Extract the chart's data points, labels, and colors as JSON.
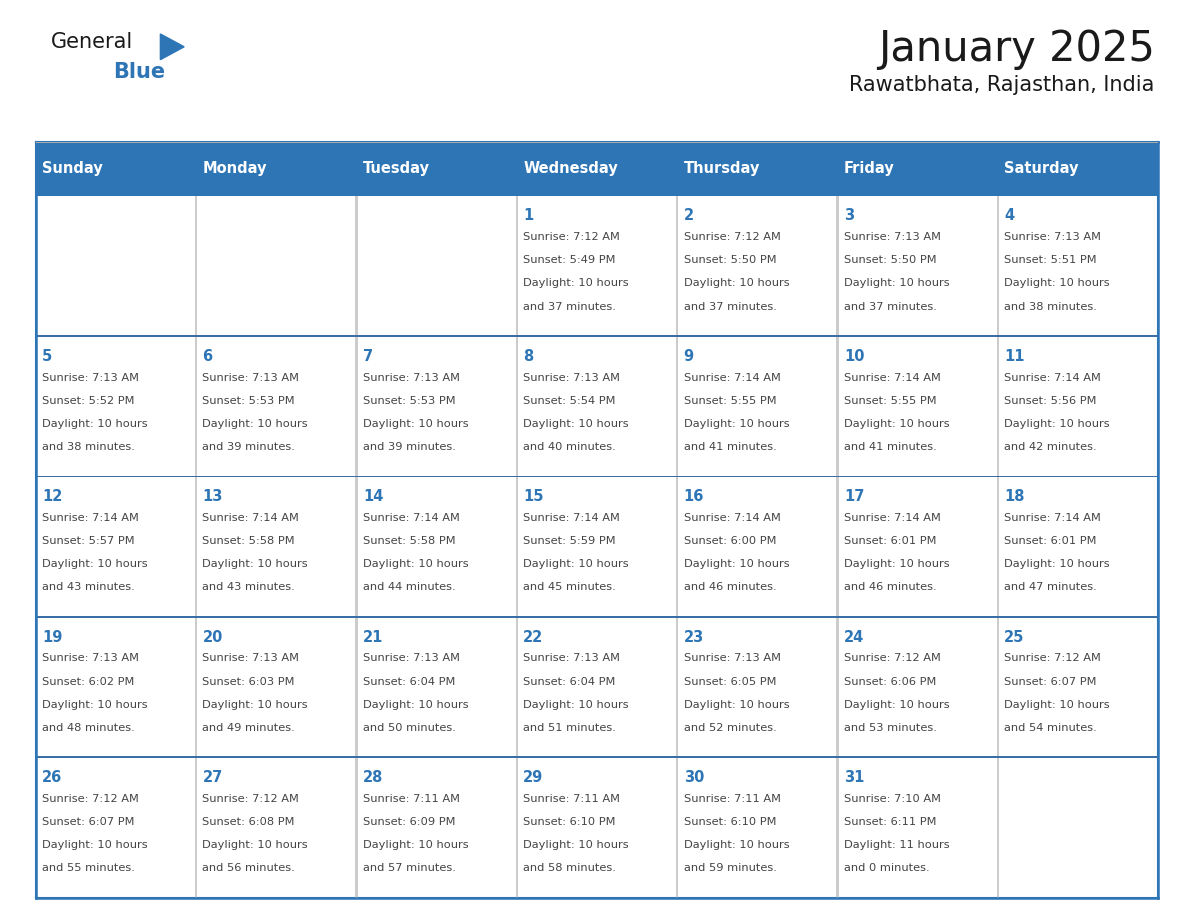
{
  "title": "January 2025",
  "subtitle": "Rawatbhata, Rajasthan, India",
  "days_of_week": [
    "Sunday",
    "Monday",
    "Tuesday",
    "Wednesday",
    "Thursday",
    "Friday",
    "Saturday"
  ],
  "header_bg": "#2E75B6",
  "header_text": "#FFFFFF",
  "cell_bg": "#FFFFFF",
  "border_color": "#2E75B6",
  "row_border_color": "#3A6EA5",
  "col_border_color": "#CCCCCC",
  "day_num_color": "#2E75B6",
  "cell_text_color": "#444444",
  "title_color": "#1a1a1a",
  "subtitle_color": "#1a1a1a",
  "logo_general_color": "#1a1a1a",
  "logo_blue_color": "#2E75B6",
  "calendar_data": [
    [
      null,
      null,
      null,
      {
        "day": 1,
        "sunrise": "7:12 AM",
        "sunset": "5:49 PM",
        "daylight": "10 hours and 37 minutes."
      },
      {
        "day": 2,
        "sunrise": "7:12 AM",
        "sunset": "5:50 PM",
        "daylight": "10 hours and 37 minutes."
      },
      {
        "day": 3,
        "sunrise": "7:13 AM",
        "sunset": "5:50 PM",
        "daylight": "10 hours and 37 minutes."
      },
      {
        "day": 4,
        "sunrise": "7:13 AM",
        "sunset": "5:51 PM",
        "daylight": "10 hours and 38 minutes."
      }
    ],
    [
      {
        "day": 5,
        "sunrise": "7:13 AM",
        "sunset": "5:52 PM",
        "daylight": "10 hours and 38 minutes."
      },
      {
        "day": 6,
        "sunrise": "7:13 AM",
        "sunset": "5:53 PM",
        "daylight": "10 hours and 39 minutes."
      },
      {
        "day": 7,
        "sunrise": "7:13 AM",
        "sunset": "5:53 PM",
        "daylight": "10 hours and 39 minutes."
      },
      {
        "day": 8,
        "sunrise": "7:13 AM",
        "sunset": "5:54 PM",
        "daylight": "10 hours and 40 minutes."
      },
      {
        "day": 9,
        "sunrise": "7:14 AM",
        "sunset": "5:55 PM",
        "daylight": "10 hours and 41 minutes."
      },
      {
        "day": 10,
        "sunrise": "7:14 AM",
        "sunset": "5:55 PM",
        "daylight": "10 hours and 41 minutes."
      },
      {
        "day": 11,
        "sunrise": "7:14 AM",
        "sunset": "5:56 PM",
        "daylight": "10 hours and 42 minutes."
      }
    ],
    [
      {
        "day": 12,
        "sunrise": "7:14 AM",
        "sunset": "5:57 PM",
        "daylight": "10 hours and 43 minutes."
      },
      {
        "day": 13,
        "sunrise": "7:14 AM",
        "sunset": "5:58 PM",
        "daylight": "10 hours and 43 minutes."
      },
      {
        "day": 14,
        "sunrise": "7:14 AM",
        "sunset": "5:58 PM",
        "daylight": "10 hours and 44 minutes."
      },
      {
        "day": 15,
        "sunrise": "7:14 AM",
        "sunset": "5:59 PM",
        "daylight": "10 hours and 45 minutes."
      },
      {
        "day": 16,
        "sunrise": "7:14 AM",
        "sunset": "6:00 PM",
        "daylight": "10 hours and 46 minutes."
      },
      {
        "day": 17,
        "sunrise": "7:14 AM",
        "sunset": "6:01 PM",
        "daylight": "10 hours and 46 minutes."
      },
      {
        "day": 18,
        "sunrise": "7:14 AM",
        "sunset": "6:01 PM",
        "daylight": "10 hours and 47 minutes."
      }
    ],
    [
      {
        "day": 19,
        "sunrise": "7:13 AM",
        "sunset": "6:02 PM",
        "daylight": "10 hours and 48 minutes."
      },
      {
        "day": 20,
        "sunrise": "7:13 AM",
        "sunset": "6:03 PM",
        "daylight": "10 hours and 49 minutes."
      },
      {
        "day": 21,
        "sunrise": "7:13 AM",
        "sunset": "6:04 PM",
        "daylight": "10 hours and 50 minutes."
      },
      {
        "day": 22,
        "sunrise": "7:13 AM",
        "sunset": "6:04 PM",
        "daylight": "10 hours and 51 minutes."
      },
      {
        "day": 23,
        "sunrise": "7:13 AM",
        "sunset": "6:05 PM",
        "daylight": "10 hours and 52 minutes."
      },
      {
        "day": 24,
        "sunrise": "7:12 AM",
        "sunset": "6:06 PM",
        "daylight": "10 hours and 53 minutes."
      },
      {
        "day": 25,
        "sunrise": "7:12 AM",
        "sunset": "6:07 PM",
        "daylight": "10 hours and 54 minutes."
      }
    ],
    [
      {
        "day": 26,
        "sunrise": "7:12 AM",
        "sunset": "6:07 PM",
        "daylight": "10 hours and 55 minutes."
      },
      {
        "day": 27,
        "sunrise": "7:12 AM",
        "sunset": "6:08 PM",
        "daylight": "10 hours and 56 minutes."
      },
      {
        "day": 28,
        "sunrise": "7:11 AM",
        "sunset": "6:09 PM",
        "daylight": "10 hours and 57 minutes."
      },
      {
        "day": 29,
        "sunrise": "7:11 AM",
        "sunset": "6:10 PM",
        "daylight": "10 hours and 58 minutes."
      },
      {
        "day": 30,
        "sunrise": "7:11 AM",
        "sunset": "6:10 PM",
        "daylight": "10 hours and 59 minutes."
      },
      {
        "day": 31,
        "sunrise": "7:10 AM",
        "sunset": "6:11 PM",
        "daylight": "11 hours and 0 minutes."
      },
      null
    ]
  ]
}
